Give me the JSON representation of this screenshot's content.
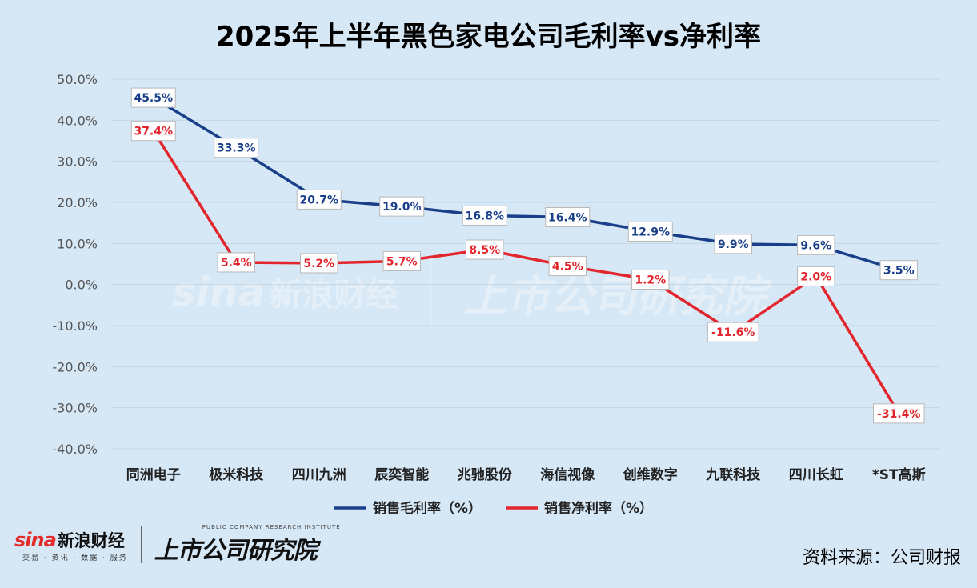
{
  "title": "2025年上半年黑色家电公司毛利率vs净利率",
  "source": "资料来源：公司财报",
  "logos": {
    "sina_word": "sina",
    "sina_cn": "新浪财经",
    "sina_sub": "交易 · 资讯 · 数据 · 服务",
    "ssgs_en": "PUBLIC COMPANY RESEARCH INSTITUTE",
    "ssgs_cn": "上市公司研究院"
  },
  "colors": {
    "gross": "#1a3f8a",
    "net": "#e3262d",
    "background": "#d6e7f5",
    "grid": "#c4d5e3"
  },
  "chart_data": {
    "type": "line",
    "title": "2025年上半年黑色家电公司毛利率vs净利率",
    "categories": [
      "同洲电子",
      "极米科技",
      "四川九洲",
      "辰奕智能",
      "兆驰股份",
      "海信视像",
      "创维数字",
      "九联科技",
      "四川长虹",
      "*ST高斯"
    ],
    "series": [
      {
        "name": "销售毛利率（%）",
        "values": [
          45.5,
          33.3,
          20.7,
          19.0,
          16.8,
          16.4,
          12.9,
          9.9,
          9.6,
          3.5
        ]
      },
      {
        "name": "销售净利率（%）",
        "values": [
          37.4,
          5.4,
          5.2,
          5.7,
          8.5,
          4.5,
          1.2,
          -11.6,
          2.0,
          -31.4
        ]
      }
    ],
    "y_ticks": [
      "50.0%",
      "40.0%",
      "30.0%",
      "20.0%",
      "10.0%",
      "0.0%",
      "-10.0%",
      "-20.0%",
      "-30.0%",
      "-40.0%"
    ],
    "ylim": [
      -40,
      50
    ],
    "grid": true,
    "legend_position": "bottom"
  }
}
